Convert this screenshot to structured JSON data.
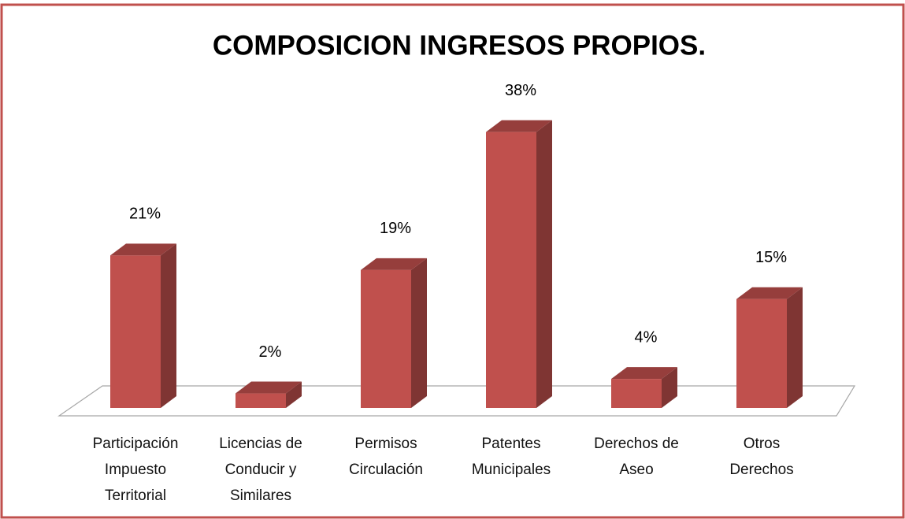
{
  "chart_data": {
    "type": "bar3d",
    "title": "COMPOSICION INGRESOS PROPIOS.",
    "categories": [
      "Participación Impuesto Territorial",
      "Licencias de Conducir y Similares",
      "Permisos Circulación",
      "Patentes Municipales",
      "Derechos de Aseo",
      "Otros Derechos"
    ],
    "values": [
      21,
      2,
      19,
      38,
      4,
      15
    ],
    "value_labels": [
      "21%",
      "2%",
      "19%",
      "38%",
      "4%",
      "15%"
    ],
    "color": "#c0504d"
  }
}
